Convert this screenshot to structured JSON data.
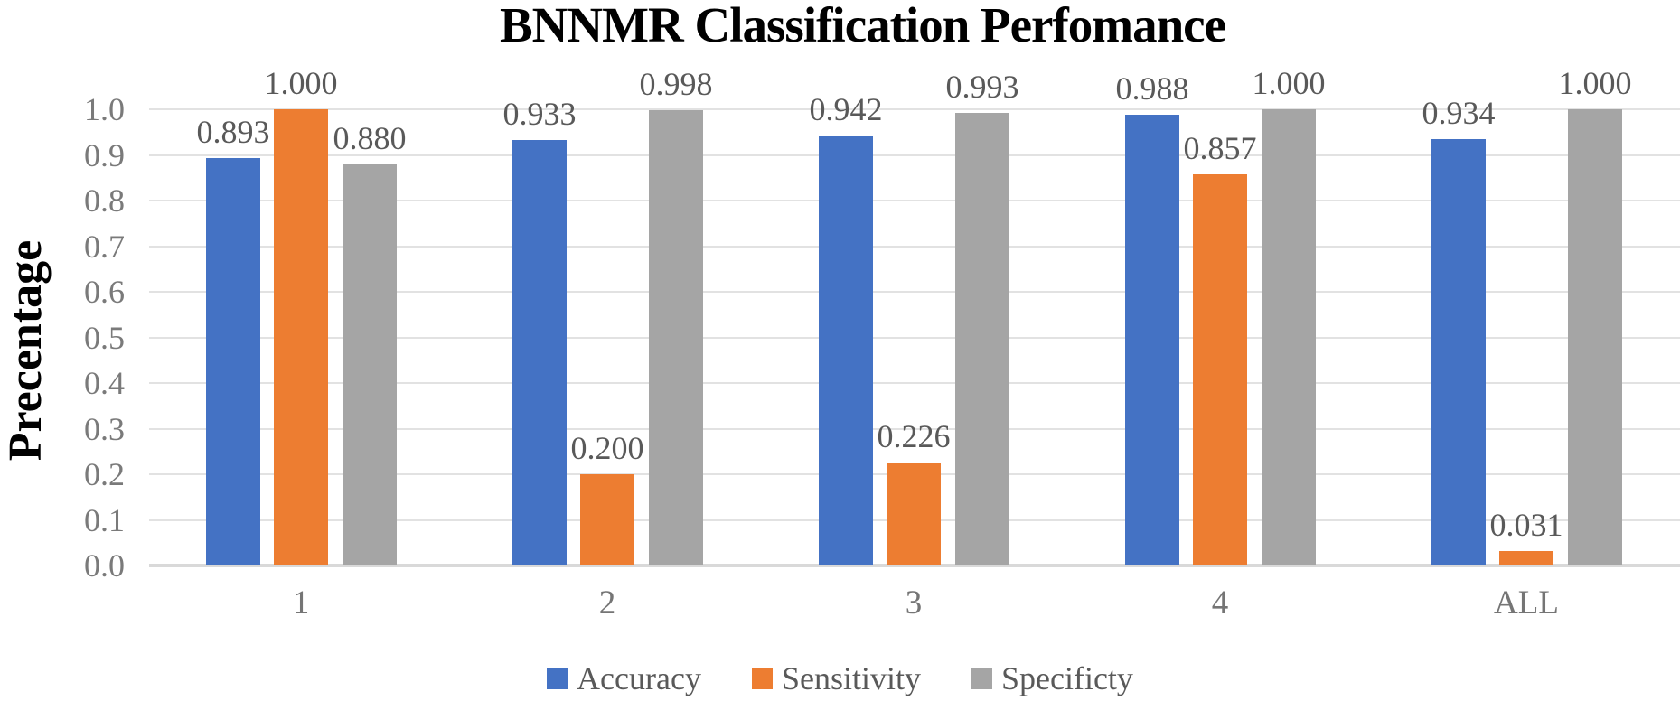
{
  "title": "BNNMR Classification Perfomance",
  "y_axis": {
    "title": "Precentage",
    "tick_labels": [
      "0.0",
      "0.1",
      "0.2",
      "0.3",
      "0.4",
      "0.5",
      "0.6",
      "0.7",
      "0.8",
      "0.9",
      "1.0"
    ]
  },
  "x_axis": {
    "categories": [
      "1",
      "2",
      "3",
      "4",
      "ALL"
    ]
  },
  "legend": [
    {
      "label": "Accuracy",
      "color": "#4472C4"
    },
    {
      "label": "Sensitivity",
      "color": "#ED7D31"
    },
    {
      "label": "Specificty",
      "color": "#A5A5A5"
    }
  ],
  "colors": {
    "accuracy": "#4472C4",
    "sensitivity": "#ED7D31",
    "specificity": "#A5A5A5",
    "gridline": "#e2e2e2",
    "data_label": "#595959",
    "axis_label": "#7a7a7a"
  },
  "chart_data": {
    "type": "bar",
    "title": "BNNMR Classification Perfomance",
    "xlabel": "",
    "ylabel": "Precentage",
    "categories": [
      "1",
      "2",
      "3",
      "4",
      "ALL"
    ],
    "series": [
      {
        "name": "Accuracy",
        "color": "#4472C4",
        "values": [
          0.893,
          0.933,
          0.942,
          0.988,
          0.934
        ],
        "labels": [
          "0.893",
          "0.933",
          "0.942",
          "0.988",
          "0.934"
        ]
      },
      {
        "name": "Sensitivity",
        "color": "#ED7D31",
        "values": [
          1.0,
          0.2,
          0.226,
          0.857,
          0.031
        ],
        "labels": [
          "1.000",
          "0.200",
          "0.226",
          "0.857",
          "0.031"
        ]
      },
      {
        "name": "Specificty",
        "color": "#A5A5A5",
        "values": [
          0.88,
          0.998,
          0.993,
          1.0,
          1.0
        ],
        "labels": [
          "0.880",
          "0.998",
          "0.993",
          "1.000",
          "1.000"
        ]
      }
    ],
    "ylim": [
      0.0,
      1.0
    ],
    "ytick_step": 0.1,
    "grid": true,
    "legend_position": "bottom"
  }
}
